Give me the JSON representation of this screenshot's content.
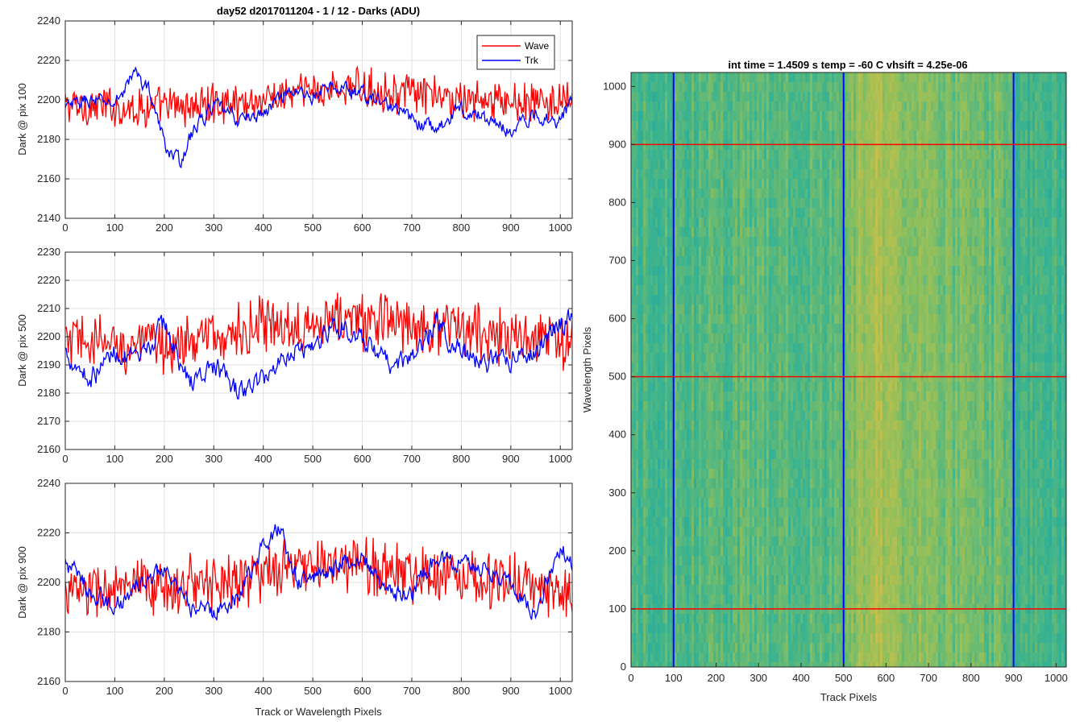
{
  "figure": {
    "title": "day52 d2017011204 - 1 / 12 - Darks (ADU)",
    "bottom_xlabel": "Track or Wavelength Pixels"
  },
  "chart_data": [
    {
      "type": "line",
      "ylabel": "Dark @ pix 100",
      "xlim": [
        0,
        1024
      ],
      "ylim": [
        2140,
        2240
      ],
      "xticks": [
        0,
        100,
        200,
        300,
        400,
        500,
        600,
        700,
        800,
        900,
        1000
      ],
      "yticks": [
        2140,
        2160,
        2180,
        2200,
        2220,
        2240
      ],
      "grid": true,
      "legend_position": "top-right",
      "series": [
        {
          "name": "Wave",
          "color": "#ff0000",
          "mean": 2199,
          "noise": 8,
          "trend": [
            [
              0,
              2197
            ],
            [
              200,
              2196
            ],
            [
              400,
              2200
            ],
            [
              500,
              2205
            ],
            [
              600,
              2206
            ],
            [
              700,
              2203
            ],
            [
              800,
              2200
            ],
            [
              900,
              2199
            ],
            [
              1024,
              2198
            ]
          ]
        },
        {
          "name": "Trk",
          "color": "#0000ff",
          "mean": 2195,
          "noise": 4,
          "trend": [
            [
              0,
              2195
            ],
            [
              40,
              2200
            ],
            [
              100,
              2198
            ],
            [
              140,
              2214
            ],
            [
              170,
              2205
            ],
            [
              200,
              2178
            ],
            [
              230,
              2168
            ],
            [
              260,
              2185
            ],
            [
              300,
              2197
            ],
            [
              350,
              2190
            ],
            [
              400,
              2193
            ],
            [
              450,
              2205
            ],
            [
              500,
              2202
            ],
            [
              550,
              2207
            ],
            [
              600,
              2203
            ],
            [
              650,
              2198
            ],
            [
              700,
              2190
            ],
            [
              750,
              2185
            ],
            [
              800,
              2196
            ],
            [
              850,
              2190
            ],
            [
              900,
              2185
            ],
            [
              950,
              2192
            ],
            [
              1000,
              2190
            ],
            [
              1024,
              2200
            ]
          ]
        }
      ]
    },
    {
      "type": "line",
      "ylabel": "Dark @ pix 500",
      "xlim": [
        0,
        1024
      ],
      "ylim": [
        2160,
        2230
      ],
      "xticks": [
        0,
        100,
        200,
        300,
        400,
        500,
        600,
        700,
        800,
        900,
        1000
      ],
      "yticks": [
        2160,
        2170,
        2180,
        2190,
        2200,
        2210,
        2220,
        2230
      ],
      "grid": true,
      "series": [
        {
          "name": "Wave",
          "color": "#ff0000",
          "mean": 2200,
          "noise": 8,
          "trend": [
            [
              0,
              2198
            ],
            [
              200,
              2197
            ],
            [
              400,
              2203
            ],
            [
              500,
              2206
            ],
            [
              600,
              2206
            ],
            [
              700,
              2205
            ],
            [
              800,
              2203
            ],
            [
              900,
              2200
            ],
            [
              1024,
              2198
            ]
          ]
        },
        {
          "name": "Trk",
          "color": "#0000ff",
          "mean": 2192,
          "noise": 4,
          "trend": [
            [
              0,
              2195
            ],
            [
              50,
              2185
            ],
            [
              100,
              2195
            ],
            [
              150,
              2190
            ],
            [
              200,
              2205
            ],
            [
              250,
              2183
            ],
            [
              300,
              2190
            ],
            [
              350,
              2180
            ],
            [
              400,
              2185
            ],
            [
              450,
              2195
            ],
            [
              500,
              2197
            ],
            [
              550,
              2205
            ],
            [
              600,
              2198
            ],
            [
              650,
              2190
            ],
            [
              700,
              2192
            ],
            [
              750,
              2205
            ],
            [
              800,
              2195
            ],
            [
              850,
              2190
            ],
            [
              900,
              2192
            ],
            [
              950,
              2195
            ],
            [
              1000,
              2205
            ],
            [
              1024,
              2208
            ]
          ]
        }
      ]
    },
    {
      "type": "line",
      "ylabel": "Dark @ pix 900",
      "xlim": [
        0,
        1024
      ],
      "ylim": [
        2160,
        2240
      ],
      "xticks": [
        0,
        100,
        200,
        300,
        400,
        500,
        600,
        700,
        800,
        900,
        1000
      ],
      "yticks": [
        2160,
        2180,
        2200,
        2220,
        2240
      ],
      "grid": true,
      "series": [
        {
          "name": "Wave",
          "color": "#ff0000",
          "mean": 2200,
          "noise": 9,
          "trend": [
            [
              0,
              2196
            ],
            [
              200,
              2198
            ],
            [
              400,
              2203
            ],
            [
              500,
              2207
            ],
            [
              600,
              2207
            ],
            [
              700,
              2204
            ],
            [
              800,
              2203
            ],
            [
              900,
              2200
            ],
            [
              1024,
              2195
            ]
          ]
        },
        {
          "name": "Trk",
          "color": "#0000ff",
          "mean": 2200,
          "noise": 4,
          "trend": [
            [
              0,
              2208
            ],
            [
              50,
              2197
            ],
            [
              100,
              2190
            ],
            [
              150,
              2198
            ],
            [
              200,
              2205
            ],
            [
              250,
              2190
            ],
            [
              300,
              2188
            ],
            [
              350,
              2195
            ],
            [
              400,
              2215
            ],
            [
              430,
              2222
            ],
            [
              470,
              2200
            ],
            [
              500,
              2202
            ],
            [
              550,
              2208
            ],
            [
              600,
              2210
            ],
            [
              650,
              2195
            ],
            [
              700,
              2196
            ],
            [
              750,
              2210
            ],
            [
              800,
              2208
            ],
            [
              850,
              2205
            ],
            [
              900,
              2200
            ],
            [
              950,
              2188
            ],
            [
              1000,
              2215
            ],
            [
              1024,
              2208
            ]
          ]
        }
      ]
    },
    {
      "type": "heatmap",
      "title": "int time = 1.4509 s    temp = -60 C    vhsift = 4.25e-06",
      "xlabel": "Track Pixels",
      "ylabel": "Wavelength Pixels",
      "xlim": [
        0,
        1024
      ],
      "ylim": [
        0,
        1024
      ],
      "xticks": [
        0,
        100,
        200,
        300,
        400,
        500,
        600,
        700,
        800,
        900,
        1000
      ],
      "yticks": [
        0,
        100,
        200,
        300,
        400,
        500,
        600,
        700,
        800,
        900,
        1000
      ],
      "colormap": [
        "#1aa6a6",
        "#3fb48c",
        "#8cbf5e",
        "#c7c04a"
      ],
      "vertical_lines": {
        "color": "#0000ff",
        "x": [
          100,
          500,
          900
        ]
      },
      "horizontal_lines": {
        "color": "#ff0000",
        "y": [
          100,
          500,
          900
        ]
      },
      "column_brightness": [
        [
          0,
          0.35
        ],
        [
          100,
          0.4
        ],
        [
          300,
          0.45
        ],
        [
          450,
          0.45
        ],
        [
          500,
          0.5
        ],
        [
          540,
          0.75
        ],
        [
          580,
          0.82
        ],
        [
          620,
          0.7
        ],
        [
          700,
          0.6
        ],
        [
          800,
          0.55
        ],
        [
          880,
          0.5
        ],
        [
          900,
          0.35
        ],
        [
          1000,
          0.3
        ],
        [
          1024,
          0.3
        ]
      ]
    }
  ]
}
